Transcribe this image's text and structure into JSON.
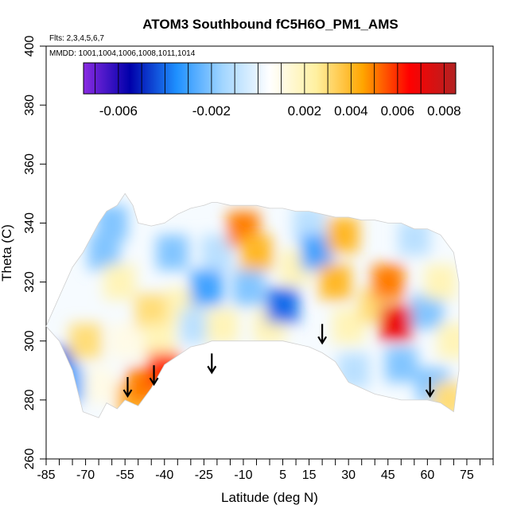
{
  "chart_data": {
    "type": "heatmap",
    "title": "ATOM3 Southbound fC5H6O_PM1_AMS",
    "subtitle_flights": "Flts: 2,3,4,5,6,7",
    "subtitle_dates": "MMDD: 1001,1004,1006,1008,1011,1014",
    "xlabel": "Latitude (deg N)",
    "ylabel": "Theta (C)",
    "xlim": [
      -85,
      85
    ],
    "ylim": [
      260,
      400
    ],
    "x_ticks": [
      -85,
      -70,
      -55,
      -40,
      -25,
      -10,
      5,
      15,
      30,
      45,
      60,
      75
    ],
    "y_ticks": [
      260,
      280,
      300,
      320,
      340,
      360,
      380,
      400
    ],
    "colorbar": {
      "range": [
        -0.0075,
        0.0085
      ],
      "tick_labels": [
        "-0.006",
        "-0.002",
        "0.002",
        "0.004",
        "0.006",
        "0.008"
      ],
      "tick_values": [
        -0.006,
        -0.002,
        0.002,
        0.004,
        0.006,
        0.008
      ],
      "colors": [
        "#8a2be2",
        "#0000aa",
        "#1e90ff",
        "#a3d6ff",
        "#ffffff",
        "#fff0a0",
        "#ffa500",
        "#ff0000",
        "#b22222"
      ]
    },
    "tropopause_arrows_lat": [
      -54,
      -44,
      -22,
      20,
      61
    ],
    "tropopause_arrows_theta": [
      284,
      288,
      292,
      302,
      284
    ],
    "domain_outline": {
      "lat": [
        -85,
        -80,
        -75,
        -71,
        -65,
        -62,
        -58,
        -55,
        -50,
        -45,
        -40,
        -35,
        -30,
        -25,
        -22,
        -15,
        -10,
        -5,
        0,
        5,
        10,
        15,
        20,
        25,
        30,
        35,
        40,
        45,
        50,
        55,
        60,
        65,
        70,
        72,
        72,
        70,
        65,
        60,
        55,
        50,
        45,
        40,
        35,
        30,
        25,
        20,
        15,
        10,
        5,
        0,
        -5,
        -10,
        -15,
        -20,
        -22,
        -25,
        -30,
        -35,
        -40,
        -45,
        -50,
        -52,
        -55,
        -58,
        -62,
        -65,
        -68,
        -71,
        -75,
        -80,
        -85
      ],
      "theta": [
        305,
        300,
        290,
        276,
        274,
        279,
        277,
        280,
        278,
        284,
        292,
        295,
        298,
        299,
        300,
        300,
        300,
        300,
        300,
        300,
        299,
        298,
        296,
        293,
        286,
        284,
        282,
        281,
        280,
        280,
        280,
        279,
        276,
        290,
        320,
        330,
        336,
        338,
        338,
        340,
        340,
        341,
        341,
        342,
        342,
        343,
        344,
        344,
        345,
        345,
        346,
        346,
        346,
        347,
        347,
        346,
        345,
        343,
        340,
        339,
        340,
        346,
        350,
        346,
        344,
        340,
        335,
        330,
        325,
        315,
        305
      ]
    },
    "field_cells": [
      {
        "lat": -80,
        "theta": 292,
        "value": -0.004
      },
      {
        "lat": -75,
        "theta": 285,
        "value": -0.003
      },
      {
        "lat": -70,
        "theta": 300,
        "value": 0.003
      },
      {
        "lat": -65,
        "theta": 285,
        "value": 0.001
      },
      {
        "lat": -63,
        "theta": 330,
        "value": -0.002
      },
      {
        "lat": -60,
        "theta": 340,
        "value": -0.002
      },
      {
        "lat": -57,
        "theta": 320,
        "value": 0.002
      },
      {
        "lat": -55,
        "theta": 300,
        "value": 0.001
      },
      {
        "lat": -52,
        "theta": 280,
        "value": 0.004
      },
      {
        "lat": -48,
        "theta": 285,
        "value": 0.005
      },
      {
        "lat": -45,
        "theta": 310,
        "value": 0.003
      },
      {
        "lat": -42,
        "theta": 300,
        "value": 0.002
      },
      {
        "lat": -40,
        "theta": 290,
        "value": 0.006
      },
      {
        "lat": -37,
        "theta": 330,
        "value": -0.002
      },
      {
        "lat": -33,
        "theta": 312,
        "value": 0.002
      },
      {
        "lat": -28,
        "theta": 305,
        "value": -0.001
      },
      {
        "lat": -24,
        "theta": 318,
        "value": -0.003
      },
      {
        "lat": -20,
        "theta": 330,
        "value": -0.001
      },
      {
        "lat": -18,
        "theta": 305,
        "value": 0.002
      },
      {
        "lat": -10,
        "theta": 338,
        "value": 0.005
      },
      {
        "lat": -8,
        "theta": 318,
        "value": -0.002
      },
      {
        "lat": -5,
        "theta": 330,
        "value": 0.004
      },
      {
        "lat": 0,
        "theta": 305,
        "value": 0.002
      },
      {
        "lat": 5,
        "theta": 312,
        "value": -0.004
      },
      {
        "lat": 10,
        "theta": 325,
        "value": 0.002
      },
      {
        "lat": 15,
        "theta": 340,
        "value": -0.001
      },
      {
        "lat": 18,
        "theta": 330,
        "value": -0.003
      },
      {
        "lat": 25,
        "theta": 320,
        "value": 0.004
      },
      {
        "lat": 28,
        "theta": 336,
        "value": 0.004
      },
      {
        "lat": 30,
        "theta": 305,
        "value": 0.002
      },
      {
        "lat": 32,
        "theta": 290,
        "value": -0.001
      },
      {
        "lat": 40,
        "theta": 312,
        "value": 0.003
      },
      {
        "lat": 45,
        "theta": 320,
        "value": 0.005
      },
      {
        "lat": 48,
        "theta": 306,
        "value": 0.007
      },
      {
        "lat": 50,
        "theta": 292,
        "value": -0.002
      },
      {
        "lat": 55,
        "theta": 335,
        "value": -0.001
      },
      {
        "lat": 60,
        "theta": 310,
        "value": -0.002
      },
      {
        "lat": 62,
        "theta": 285,
        "value": -0.002
      },
      {
        "lat": 65,
        "theta": 320,
        "value": 0.002
      },
      {
        "lat": 68,
        "theta": 280,
        "value": 0.003
      },
      {
        "lat": 70,
        "theta": 300,
        "value": 0.002
      }
    ]
  }
}
